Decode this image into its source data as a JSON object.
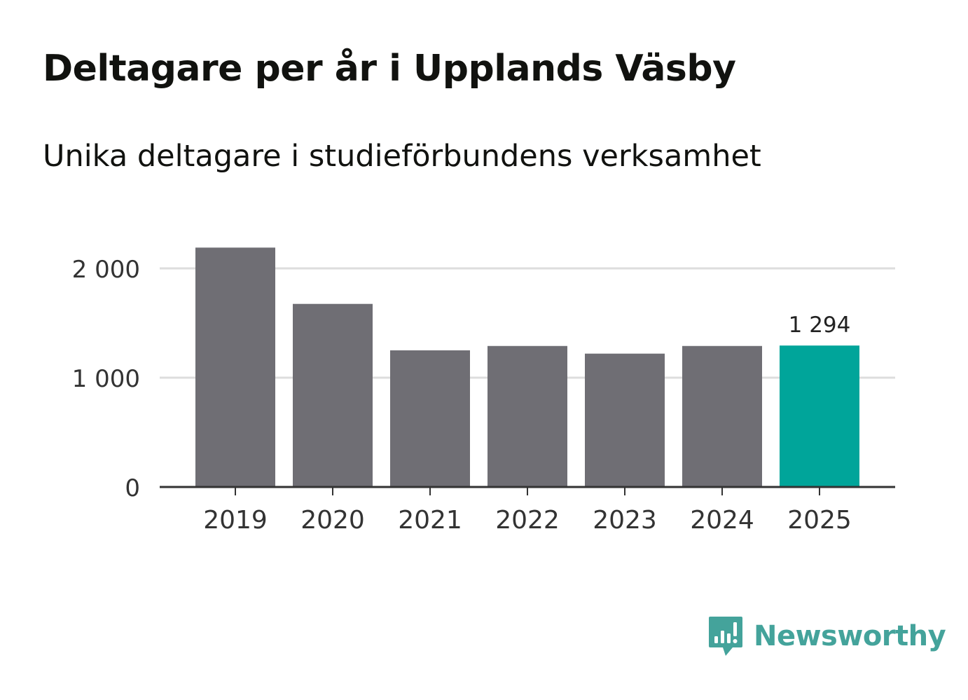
{
  "title": "Deltagare per år i Upplands Väsby",
  "subtitle": "Unika deltagare i studieförbundens verksamhet",
  "brand": {
    "name": "Newsworthy",
    "color": "#44a39b"
  },
  "chart_data": {
    "type": "bar",
    "categories": [
      "2019",
      "2020",
      "2021",
      "2022",
      "2023",
      "2024",
      "2025"
    ],
    "values": [
      2190,
      1675,
      1250,
      1290,
      1220,
      1290,
      1294
    ],
    "ylim": [
      0,
      2000
    ],
    "yticks": [
      0,
      1000,
      2000
    ],
    "ytick_labels": [
      "0",
      "1 000",
      "2 000"
    ],
    "xlabel": "",
    "ylabel": "",
    "highlight_index": 6,
    "highlight_label": "1 294",
    "colors": {
      "bar": "#6f6e74",
      "highlight": "#00a59a",
      "grid": "#dddddd",
      "axis": "#333333"
    }
  }
}
